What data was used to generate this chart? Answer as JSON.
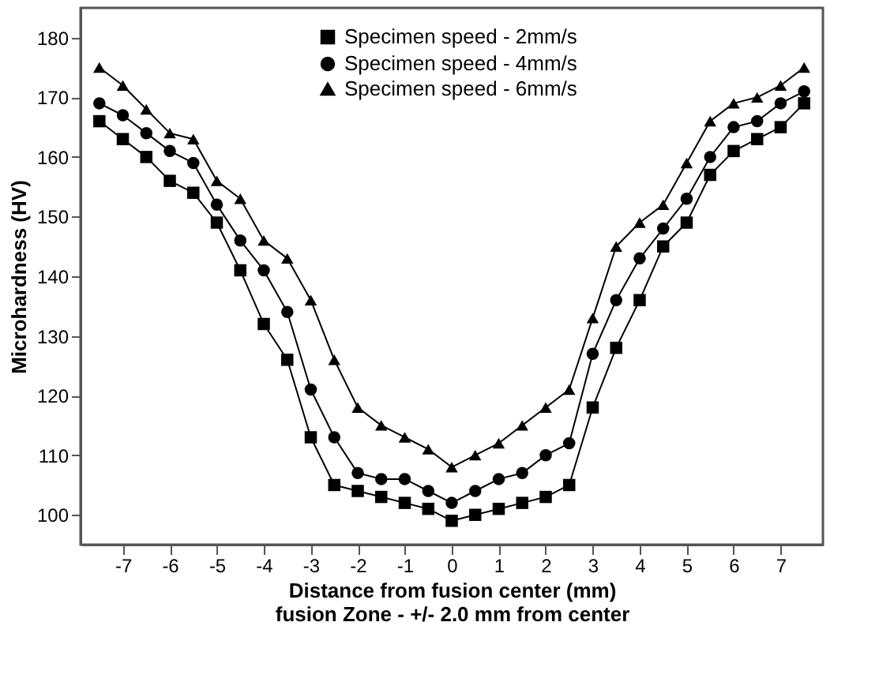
{
  "chart_data": {
    "type": "line",
    "xlabel": "Distance from fusion center (mm)\nfusion Zone -  +/- 2.0 mm from center",
    "ylabel": "Microhardness (HV)",
    "x": [
      -7.5,
      -7,
      -6.5,
      -6,
      -5.5,
      -5,
      -4.5,
      -4,
      -3.5,
      -3,
      -2.5,
      -2,
      -1.5,
      -1,
      -0.5,
      0,
      0.5,
      1,
      1.5,
      2,
      2.5,
      3,
      3.5,
      4,
      4.5,
      5,
      5.5,
      6,
      6.5,
      7,
      7.5
    ],
    "series": [
      {
        "name": "Specimen speed - 2mm/s",
        "color": "#000000",
        "marker": "square",
        "values": [
          166,
          163,
          160,
          156,
          154,
          149,
          141,
          132,
          126,
          113,
          105,
          104,
          103,
          102,
          101,
          99,
          100,
          101,
          102,
          103,
          105,
          118,
          128,
          136,
          145,
          149,
          157,
          161,
          163,
          165,
          169
        ]
      },
      {
        "name": "Specimen speed - 4mm/s",
        "color": "#000000",
        "marker": "circle",
        "values": [
          169,
          167,
          164,
          161,
          159,
          152,
          146,
          141,
          134,
          121,
          113,
          107,
          106,
          106,
          104,
          102,
          104,
          106,
          107,
          110,
          112,
          127,
          136,
          143,
          148,
          153,
          160,
          165,
          166,
          169,
          171
        ]
      },
      {
        "name": "Specimen speed - 6mm/s",
        "color": "#000000",
        "marker": "triangle",
        "values": [
          175,
          172,
          168,
          164,
          163,
          156,
          153,
          146,
          143,
          136,
          126,
          118,
          115,
          113,
          111,
          108,
          110,
          112,
          115,
          118,
          121,
          133,
          145,
          149,
          152,
          159,
          166,
          169,
          170,
          172,
          175
        ]
      }
    ],
    "xlim": [
      -7.9,
      7.9
    ],
    "xticks": [
      -7,
      -6,
      -5,
      -4,
      -3,
      -2,
      -1,
      0,
      1,
      2,
      3,
      4,
      5,
      6,
      7
    ],
    "ylim": [
      95,
      185
    ],
    "yticks": [
      100,
      110,
      120,
      130,
      140,
      150,
      160,
      170,
      180
    ],
    "grid": false,
    "legend": "top",
    "line_style": "solid"
  }
}
